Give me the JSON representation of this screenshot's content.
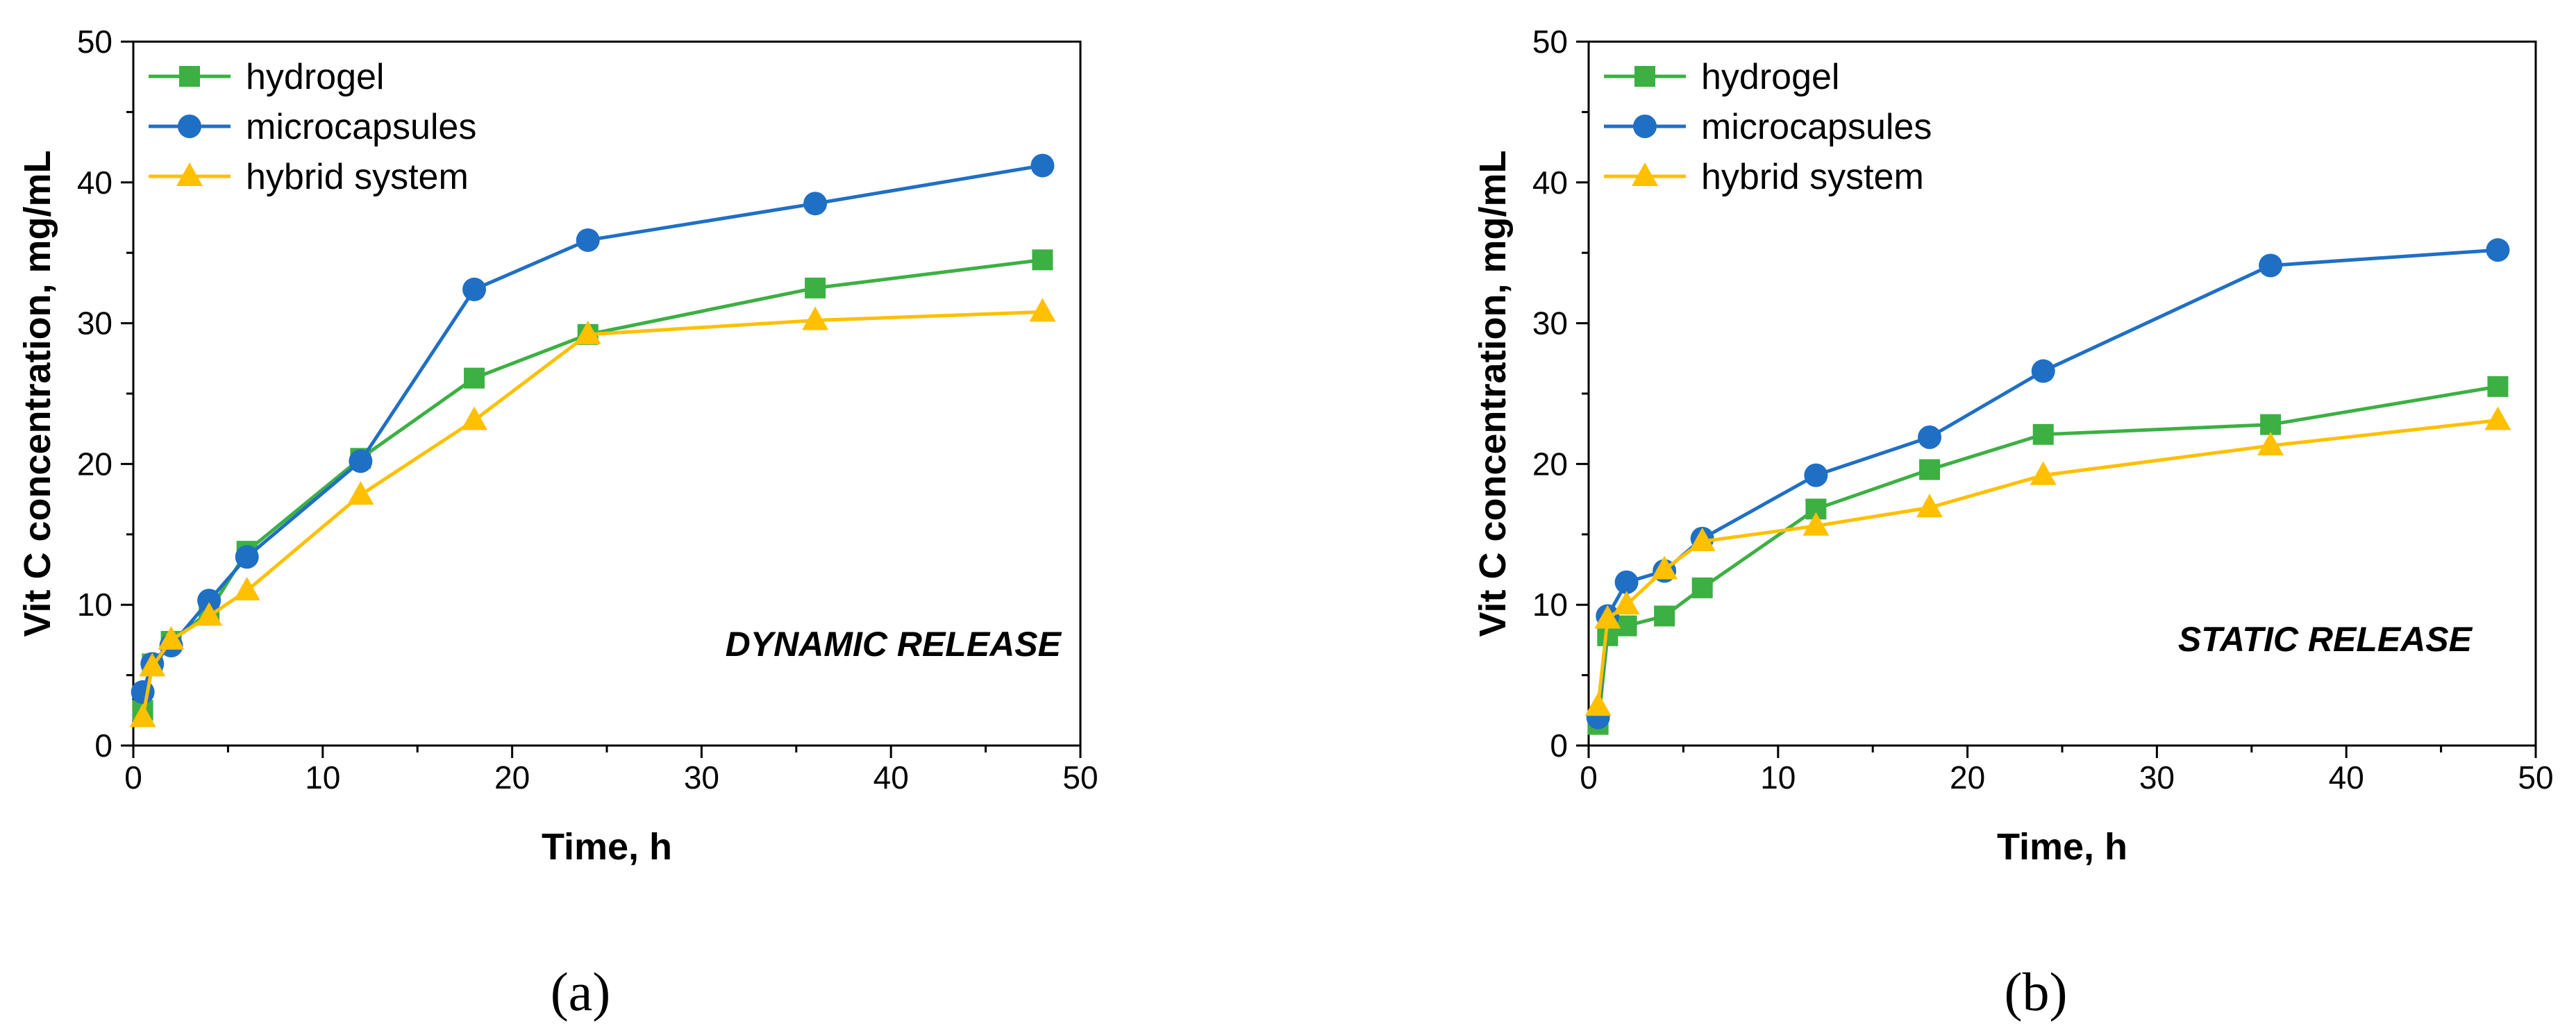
{
  "chart_data": [
    {
      "type": "line",
      "panel_label": "(a)",
      "panel_letter": "a",
      "annotation": "DYNAMIC RELEASE",
      "xlabel": "Time, h",
      "ylabel": "Vit C concentration, mg/mL",
      "xlim": [
        0,
        50
      ],
      "ylim": [
        0,
        50
      ],
      "xticks": [
        0,
        10,
        20,
        30,
        40,
        50
      ],
      "yticks": [
        0,
        10,
        20,
        30,
        40,
        50
      ],
      "legend_position": "top-left",
      "series": [
        {
          "name": "hydrogel",
          "color": "#3cb043",
          "marker": "square",
          "x": [
            0.5,
            1,
            2,
            4,
            6,
            12,
            18,
            24,
            36,
            48
          ],
          "y": [
            2.5,
            5.8,
            7.4,
            9.5,
            13.8,
            20.4,
            26.1,
            29.2,
            32.5,
            34.5
          ]
        },
        {
          "name": "microcapsules",
          "color": "#1f6fc5",
          "marker": "circle",
          "x": [
            0.5,
            1,
            2,
            4,
            6,
            12,
            18,
            24,
            36,
            48
          ],
          "y": [
            3.8,
            5.8,
            7.1,
            10.3,
            13.4,
            20.2,
            32.4,
            35.9,
            38.5,
            41.2
          ]
        },
        {
          "name": "hybrid system",
          "color": "#ffc000",
          "marker": "triangle",
          "x": [
            0.5,
            1,
            2,
            4,
            6,
            12,
            18,
            24,
            36,
            48
          ],
          "y": [
            2.0,
            5.6,
            7.5,
            9.2,
            11.0,
            17.8,
            23.1,
            29.2,
            30.2,
            30.8
          ]
        }
      ]
    },
    {
      "type": "line",
      "panel_label": "(b)",
      "panel_letter": "b",
      "annotation": "STATIC RELEASE",
      "xlabel": "Time, h",
      "ylabel": "Vit C concentration, mg/mL",
      "xlim": [
        0,
        50
      ],
      "ylim": [
        0,
        50
      ],
      "xticks": [
        0,
        10,
        20,
        30,
        40,
        50
      ],
      "yticks": [
        0,
        10,
        20,
        30,
        40,
        50
      ],
      "legend_position": "top-left",
      "series": [
        {
          "name": "hydrogel",
          "color": "#3cb043",
          "marker": "square",
          "x": [
            0.5,
            1,
            2,
            4,
            6,
            12,
            18,
            24,
            36,
            48
          ],
          "y": [
            1.5,
            7.8,
            8.5,
            9.2,
            11.2,
            16.8,
            19.6,
            22.1,
            22.8,
            25.5
          ]
        },
        {
          "name": "microcapsules",
          "color": "#1f6fc5",
          "marker": "circle",
          "x": [
            0.5,
            1,
            2,
            4,
            6,
            12,
            18,
            24,
            36,
            48
          ],
          "y": [
            2.0,
            9.2,
            11.6,
            12.4,
            14.7,
            19.2,
            21.9,
            26.6,
            34.1,
            35.2
          ]
        },
        {
          "name": "hybrid system",
          "color": "#ffc000",
          "marker": "triangle",
          "x": [
            0.5,
            1,
            2,
            4,
            6,
            12,
            18,
            24,
            36,
            48
          ],
          "y": [
            2.8,
            9.0,
            10.0,
            12.5,
            14.5,
            15.6,
            16.9,
            19.2,
            21.3,
            23.1
          ]
        }
      ]
    }
  ]
}
